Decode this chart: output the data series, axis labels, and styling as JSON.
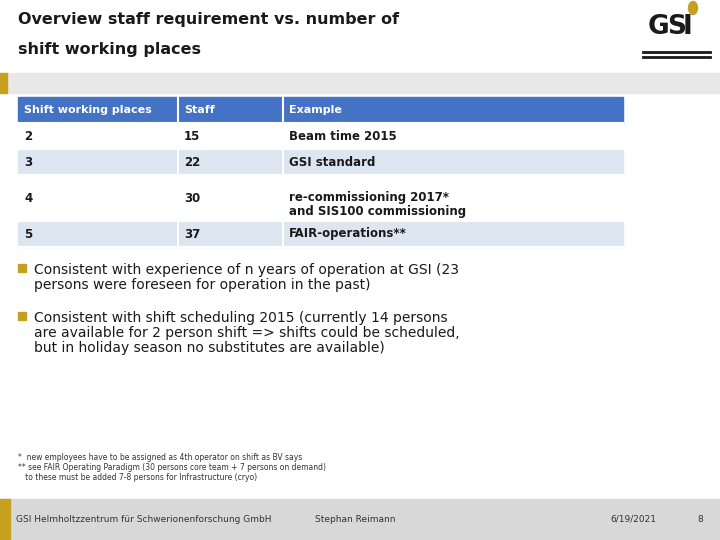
{
  "title_line1": "Overview staff requirement vs. number of",
  "title_line2": "shift working places",
  "bg_color": "#ffffff",
  "gray_band_color": "#e8e8e8",
  "header_color": "#4472c4",
  "header_text_color": "#ffffff",
  "row_alt_color": "#dce6f1",
  "row_normal_color": "#ffffff",
  "table_headers": [
    "Shift working places",
    "Staff",
    "Example"
  ],
  "table_rows": [
    [
      "2",
      "15",
      "Beam time 2015"
    ],
    [
      "3",
      "22",
      "GSI standard"
    ],
    [
      "4",
      "30",
      "re-commissioning 2017*\nand SIS100 commissioning"
    ],
    [
      "5",
      "37",
      "FAIR-operations**"
    ]
  ],
  "bullet1_line1": "Consistent with experience of n years of operation at GSI (23",
  "bullet1_line2": "persons were foreseen for operation in the past)",
  "bullet2_line1": "Consistent with shift scheduling 2015 (currently 14 persons",
  "bullet2_line2": "are available for 2 person shift => shifts could be scheduled,",
  "bullet2_line3": "but in holiday season no substitutes are available)",
  "footnote1": "*  new employees have to be assigned as 4th operator on shift as BV says",
  "footnote2": "** see FAIR Operating Paradigm (30 persons core team + 7 persons on demand)",
  "footnote3": "   to these must be added 7-8 persons for Infrastructure (cryo)",
  "footer_left": "GSI Helmholtzzentrum für Schwerionenforschung GmbH",
  "footer_center": "Stephan Reimann",
  "footer_right": "6/19/2021",
  "footer_page": "8",
  "bullet_color": "#c8a020",
  "accent_color": "#c8a020",
  "table_border_color": "#ffffff",
  "title_fontsize": 11.5,
  "header_fontsize": 8,
  "cell_fontsize": 8.5,
  "bullet_fontsize": 10,
  "footnote_fontsize": 5.5,
  "footer_fontsize": 6.5
}
